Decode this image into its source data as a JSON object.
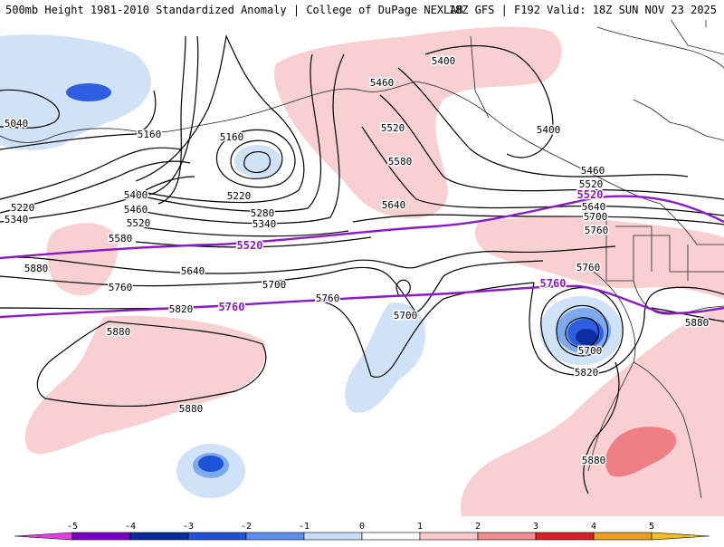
{
  "header": {
    "left_text": "500mb Height 1981-2010 Standardized Anomaly | College of DuPage NEXLAB",
    "right_text": "18Z GFS | F192 Valid: 18Z SUN NOV 23 2025"
  },
  "contour_labels": [
    {
      "text": "5040",
      "kind": "height"
    },
    {
      "text": "5160",
      "kind": "height"
    },
    {
      "text": "5160",
      "kind": "height"
    },
    {
      "text": "5220",
      "kind": "height"
    },
    {
      "text": "5220",
      "kind": "height"
    },
    {
      "text": "5280",
      "kind": "height"
    },
    {
      "text": "5340",
      "kind": "height"
    },
    {
      "text": "5340",
      "kind": "height"
    },
    {
      "text": "5400",
      "kind": "height"
    },
    {
      "text": "5460",
      "kind": "height"
    },
    {
      "text": "5520",
      "kind": "height"
    },
    {
      "text": "5580",
      "kind": "height"
    },
    {
      "text": "5640",
      "kind": "height"
    },
    {
      "text": "5700",
      "kind": "height"
    },
    {
      "text": "5760",
      "kind": "height"
    },
    {
      "text": "5820",
      "kind": "height"
    },
    {
      "text": "5880",
      "kind": "height"
    },
    {
      "text": "5880",
      "kind": "height"
    },
    {
      "text": "5400",
      "kind": "height"
    },
    {
      "text": "5460",
      "kind": "height"
    },
    {
      "text": "5520",
      "kind": "height"
    },
    {
      "text": "5580",
      "kind": "height"
    },
    {
      "text": "5640",
      "kind": "height"
    },
    {
      "text": "5400",
      "kind": "height"
    },
    {
      "text": "5460",
      "kind": "height"
    },
    {
      "text": "5520",
      "kind": "height"
    },
    {
      "text": "5640",
      "kind": "height"
    },
    {
      "text": "5700",
      "kind": "height"
    },
    {
      "text": "5760",
      "kind": "height"
    },
    {
      "text": "5760",
      "kind": "height"
    },
    {
      "text": "5700",
      "kind": "height"
    },
    {
      "text": "5760",
      "kind": "height"
    },
    {
      "text": "5700",
      "kind": "height"
    },
    {
      "text": "5820",
      "kind": "height"
    },
    {
      "text": "5880",
      "kind": "height"
    },
    {
      "text": "5880",
      "kind": "height"
    },
    {
      "text": "5880",
      "kind": "height"
    },
    {
      "text": "5520",
      "kind": "purple"
    },
    {
      "text": "5760",
      "kind": "purple"
    },
    {
      "text": "5520",
      "kind": "purple"
    },
    {
      "text": "5760",
      "kind": "purple"
    }
  ],
  "colorbar": {
    "ticks": [
      "-5",
      "-4",
      "-3",
      "-2",
      "-1",
      "0",
      "1",
      "2",
      "3",
      "4",
      "5"
    ],
    "colors": [
      "#e040e0",
      "#7a00c8",
      "#0a2a9e",
      "#1f52d8",
      "#5b8ff0",
      "#c6dcf7",
      "#ffffff",
      "#f9c9cb",
      "#f08c90",
      "#d42026",
      "#e8a020",
      "#f2c020"
    ]
  },
  "palette": {
    "neg1": "#cfe2f7",
    "neg2": "#7ea9ee",
    "neg3": "#2f5fe0",
    "neg4": "#0b2fa0",
    "pos1": "#f9d0d2",
    "pos2": "#ee7f86",
    "purple": "#8a1bc4",
    "contour": "#000000",
    "coast": "#222222"
  }
}
